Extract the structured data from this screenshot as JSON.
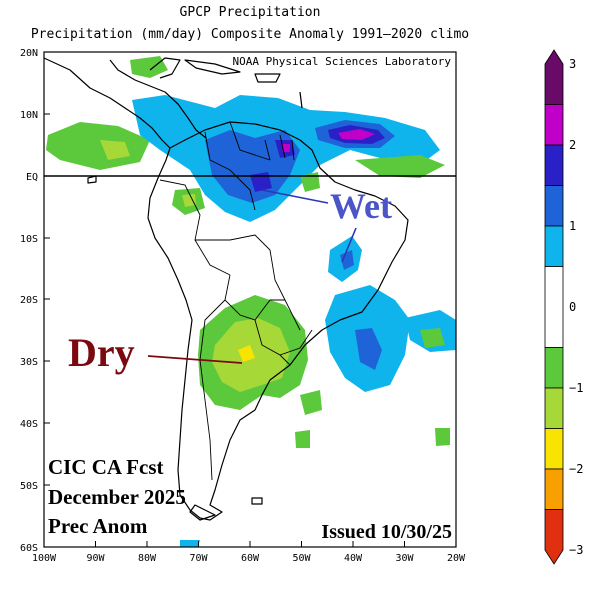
{
  "title": {
    "line1": "GPCP Precipitation",
    "line2": "Precipitation (mm/day) Composite Anomaly 1991–2020 climo"
  },
  "credit": "NOAA Physical Sciences Laboratory",
  "map": {
    "lat_labels": [
      "20N",
      "10N",
      "EQ",
      "10S",
      "20S",
      "30S",
      "40S",
      "50S",
      "60S"
    ],
    "lon_labels": [
      "100W",
      "90W",
      "80W",
      "70W",
      "60W",
      "50W",
      "40W",
      "30W",
      "20W"
    ],
    "lon_range": [
      -100,
      -20
    ],
    "lat_range": [
      -60,
      20
    ]
  },
  "annotations": {
    "wet": "Wet",
    "dry": "Dry",
    "forecast_line1": "CIC CA Fcst",
    "forecast_line2": "December 2025",
    "forecast_line3": "Prec Anom",
    "issued": "Issued 10/30/25"
  },
  "colors": {
    "wet_label": "#4a55c8",
    "dry_label": "#7a0a10"
  },
  "colorbar": {
    "ticks": [
      "3",
      "2",
      "1",
      "0",
      "−1",
      "−2",
      "−3"
    ],
    "tick_values": [
      3,
      2,
      1,
      0,
      -1,
      -2,
      -3
    ],
    "range": [
      -3,
      3
    ],
    "bins": [
      {
        "lo": 2.5,
        "hi": 3,
        "color": "#6a0a68"
      },
      {
        "lo": 2,
        "hi": 2.5,
        "color": "#c000c8"
      },
      {
        "lo": 1.5,
        "hi": 2,
        "color": "#2a20c8"
      },
      {
        "lo": 1,
        "hi": 1.5,
        "color": "#1e64d8"
      },
      {
        "lo": 0.5,
        "hi": 1,
        "color": "#10b4ec"
      },
      {
        "lo": -0.5,
        "hi": 0.5,
        "color": "#ffffff"
      },
      {
        "lo": -1,
        "hi": -0.5,
        "color": "#5cc83c"
      },
      {
        "lo": -1.5,
        "hi": -1,
        "color": "#a6d838"
      },
      {
        "lo": -2,
        "hi": -1.5,
        "color": "#f8e400"
      },
      {
        "lo": -2.5,
        "hi": -2,
        "color": "#f8a000"
      },
      {
        "lo": -3,
        "hi": -2.5,
        "color": "#e03010"
      }
    ]
  }
}
